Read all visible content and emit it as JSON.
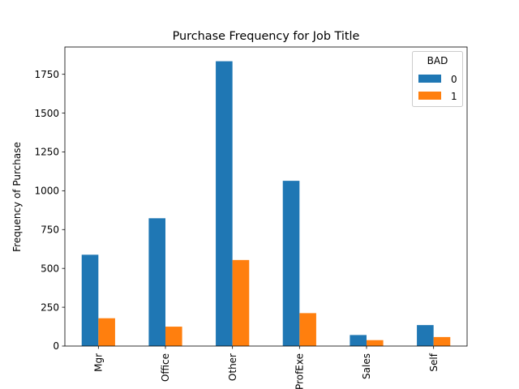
{
  "chart_data": {
    "type": "bar",
    "title": "Purchase Frequency for Job Title",
    "xlabel": "",
    "ylabel": "Frequency of Purchase",
    "categories": [
      "Mgr",
      "Office",
      "Other",
      "ProfExe",
      "Sales",
      "Self"
    ],
    "series": [
      {
        "name": "0",
        "values": [
          588,
          823,
          1834,
          1064,
          71,
          135
        ]
      },
      {
        "name": "1",
        "values": [
          179,
          125,
          554,
          212,
          38,
          58
        ]
      }
    ],
    "ylim": [
      0,
      1925.7
    ],
    "yticks": [
      0,
      250,
      500,
      750,
      1000,
      1250,
      1500,
      1750
    ],
    "ytick_labels": [
      "0",
      "250",
      "500",
      "750",
      "1000",
      "1250",
      "1500",
      "1750"
    ],
    "legend": {
      "title": "BAD",
      "placement": "top-right"
    },
    "colors": [
      "#1f77b4",
      "#ff7f0e"
    ],
    "grid": false
  }
}
